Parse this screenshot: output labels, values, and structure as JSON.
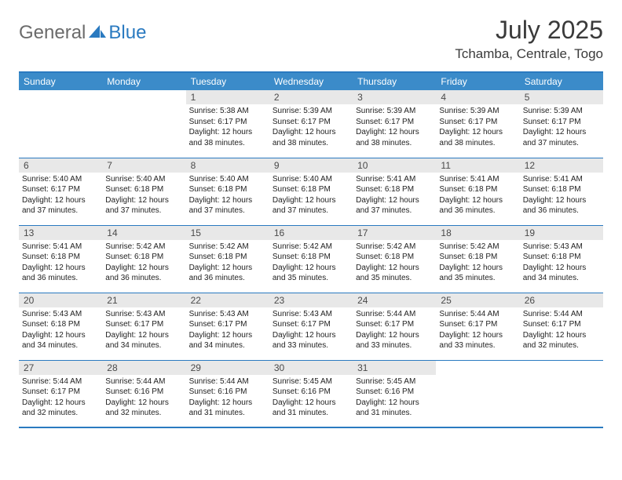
{
  "brand": {
    "part1": "General",
    "part2": "Blue"
  },
  "title": "July 2025",
  "location": "Tchamba, Centrale, Togo",
  "colors": {
    "header_bg": "#3b8bc9",
    "border": "#2a7ac0",
    "daynum_bg": "#e8e8e8",
    "text": "#222222",
    "logo_gray": "#6b6b6b",
    "logo_blue": "#2a7ac0"
  },
  "dayNames": [
    "Sunday",
    "Monday",
    "Tuesday",
    "Wednesday",
    "Thursday",
    "Friday",
    "Saturday"
  ],
  "weeks": [
    [
      null,
      null,
      {
        "n": "1",
        "sr": "5:38 AM",
        "ss": "6:17 PM",
        "dl": "12 hours and 38 minutes."
      },
      {
        "n": "2",
        "sr": "5:39 AM",
        "ss": "6:17 PM",
        "dl": "12 hours and 38 minutes."
      },
      {
        "n": "3",
        "sr": "5:39 AM",
        "ss": "6:17 PM",
        "dl": "12 hours and 38 minutes."
      },
      {
        "n": "4",
        "sr": "5:39 AM",
        "ss": "6:17 PM",
        "dl": "12 hours and 38 minutes."
      },
      {
        "n": "5",
        "sr": "5:39 AM",
        "ss": "6:17 PM",
        "dl": "12 hours and 37 minutes."
      }
    ],
    [
      {
        "n": "6",
        "sr": "5:40 AM",
        "ss": "6:17 PM",
        "dl": "12 hours and 37 minutes."
      },
      {
        "n": "7",
        "sr": "5:40 AM",
        "ss": "6:18 PM",
        "dl": "12 hours and 37 minutes."
      },
      {
        "n": "8",
        "sr": "5:40 AM",
        "ss": "6:18 PM",
        "dl": "12 hours and 37 minutes."
      },
      {
        "n": "9",
        "sr": "5:40 AM",
        "ss": "6:18 PM",
        "dl": "12 hours and 37 minutes."
      },
      {
        "n": "10",
        "sr": "5:41 AM",
        "ss": "6:18 PM",
        "dl": "12 hours and 37 minutes."
      },
      {
        "n": "11",
        "sr": "5:41 AM",
        "ss": "6:18 PM",
        "dl": "12 hours and 36 minutes."
      },
      {
        "n": "12",
        "sr": "5:41 AM",
        "ss": "6:18 PM",
        "dl": "12 hours and 36 minutes."
      }
    ],
    [
      {
        "n": "13",
        "sr": "5:41 AM",
        "ss": "6:18 PM",
        "dl": "12 hours and 36 minutes."
      },
      {
        "n": "14",
        "sr": "5:42 AM",
        "ss": "6:18 PM",
        "dl": "12 hours and 36 minutes."
      },
      {
        "n": "15",
        "sr": "5:42 AM",
        "ss": "6:18 PM",
        "dl": "12 hours and 36 minutes."
      },
      {
        "n": "16",
        "sr": "5:42 AM",
        "ss": "6:18 PM",
        "dl": "12 hours and 35 minutes."
      },
      {
        "n": "17",
        "sr": "5:42 AM",
        "ss": "6:18 PM",
        "dl": "12 hours and 35 minutes."
      },
      {
        "n": "18",
        "sr": "5:42 AM",
        "ss": "6:18 PM",
        "dl": "12 hours and 35 minutes."
      },
      {
        "n": "19",
        "sr": "5:43 AM",
        "ss": "6:18 PM",
        "dl": "12 hours and 34 minutes."
      }
    ],
    [
      {
        "n": "20",
        "sr": "5:43 AM",
        "ss": "6:18 PM",
        "dl": "12 hours and 34 minutes."
      },
      {
        "n": "21",
        "sr": "5:43 AM",
        "ss": "6:17 PM",
        "dl": "12 hours and 34 minutes."
      },
      {
        "n": "22",
        "sr": "5:43 AM",
        "ss": "6:17 PM",
        "dl": "12 hours and 34 minutes."
      },
      {
        "n": "23",
        "sr": "5:43 AM",
        "ss": "6:17 PM",
        "dl": "12 hours and 33 minutes."
      },
      {
        "n": "24",
        "sr": "5:44 AM",
        "ss": "6:17 PM",
        "dl": "12 hours and 33 minutes."
      },
      {
        "n": "25",
        "sr": "5:44 AM",
        "ss": "6:17 PM",
        "dl": "12 hours and 33 minutes."
      },
      {
        "n": "26",
        "sr": "5:44 AM",
        "ss": "6:17 PM",
        "dl": "12 hours and 32 minutes."
      }
    ],
    [
      {
        "n": "27",
        "sr": "5:44 AM",
        "ss": "6:17 PM",
        "dl": "12 hours and 32 minutes."
      },
      {
        "n": "28",
        "sr": "5:44 AM",
        "ss": "6:16 PM",
        "dl": "12 hours and 32 minutes."
      },
      {
        "n": "29",
        "sr": "5:44 AM",
        "ss": "6:16 PM",
        "dl": "12 hours and 31 minutes."
      },
      {
        "n": "30",
        "sr": "5:45 AM",
        "ss": "6:16 PM",
        "dl": "12 hours and 31 minutes."
      },
      {
        "n": "31",
        "sr": "5:45 AM",
        "ss": "6:16 PM",
        "dl": "12 hours and 31 minutes."
      },
      null,
      null
    ]
  ],
  "labels": {
    "sunrise": "Sunrise:",
    "sunset": "Sunset:",
    "daylight": "Daylight:"
  }
}
